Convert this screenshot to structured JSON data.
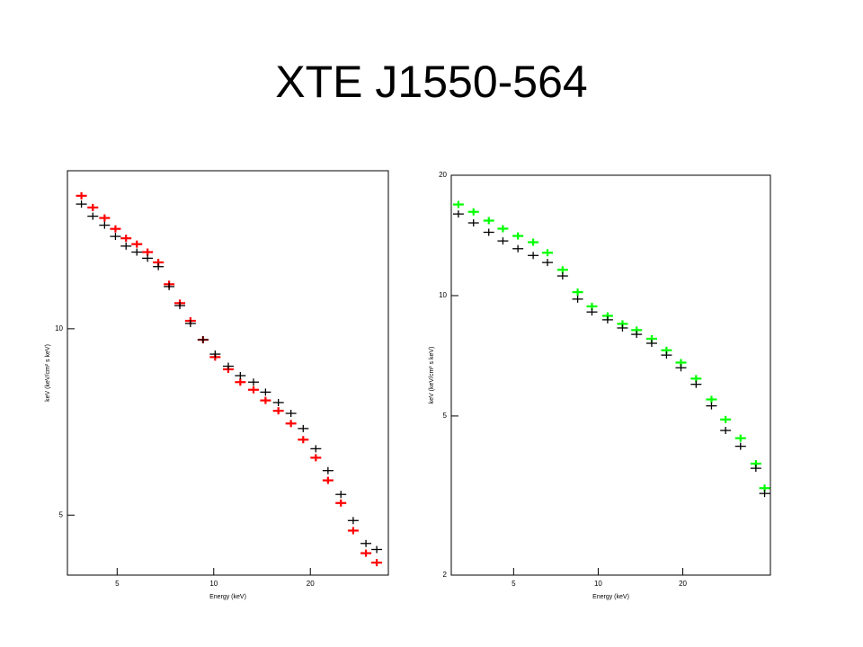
{
  "title": "XTE J1550-564",
  "chart_data": [
    {
      "type": "scatter",
      "xlabel": "Energy (keV)",
      "ylabel": "keV (keV/cm² s keV)",
      "log_x": true,
      "log_y": true,
      "xlim": [
        3.5,
        35
      ],
      "ylim": [
        4,
        18
      ],
      "xticks": [
        5,
        10,
        20
      ],
      "yticks": [
        5,
        10
      ],
      "series": [
        {
          "name": "red",
          "color": "#ff0000",
          "x": [
            3.87,
            4.2,
            4.57,
            4.94,
            5.33,
            5.76,
            6.22,
            6.72,
            7.26,
            7.84,
            8.46,
            9.26,
            10.1,
            11.1,
            12.1,
            13.3,
            14.5,
            15.9,
            17.4,
            19.0,
            20.8,
            22.7,
            24.9,
            27.2,
            29.8,
            32.2
          ],
          "values": [
            16.4,
            15.7,
            15.1,
            14.5,
            14.0,
            13.7,
            13.3,
            12.8,
            11.8,
            11.0,
            10.3,
            9.6,
            9.0,
            8.6,
            8.2,
            7.97,
            7.66,
            7.37,
            7.03,
            6.62,
            6.19,
            5.69,
            5.23,
            4.72,
            4.34,
            4.19
          ]
        },
        {
          "name": "black",
          "color": "#000000",
          "x": [
            3.87,
            4.2,
            4.57,
            4.94,
            5.33,
            5.76,
            6.22,
            6.72,
            7.26,
            7.84,
            8.46,
            9.26,
            10.1,
            11.1,
            12.1,
            13.3,
            14.5,
            15.9,
            17.4,
            19.0,
            20.8,
            22.7,
            24.9,
            27.2,
            29.8,
            32.2
          ],
          "values": [
            15.9,
            15.2,
            14.7,
            14.1,
            13.6,
            13.3,
            13.0,
            12.6,
            11.7,
            10.9,
            10.2,
            9.6,
            9.1,
            8.7,
            8.4,
            8.2,
            7.9,
            7.6,
            7.3,
            6.9,
            6.4,
            5.9,
            5.4,
            4.9,
            4.5,
            4.4
          ]
        }
      ]
    },
    {
      "type": "scatter",
      "xlabel": "Energy (keV)",
      "ylabel": "keV (keV/cm² s keV)",
      "log_x": true,
      "log_y": true,
      "xlim": [
        3.0,
        41
      ],
      "ylim": [
        2,
        20
      ],
      "xticks": [
        5,
        10,
        20
      ],
      "yticks": [
        2,
        5,
        10,
        20
      ],
      "series": [
        {
          "name": "green",
          "color": "#00ff00",
          "x": [
            3.18,
            3.6,
            4.08,
            4.58,
            5.18,
            5.87,
            6.6,
            7.47,
            8.45,
            9.5,
            10.8,
            12.2,
            13.7,
            15.5,
            17.5,
            19.7,
            22.3,
            25.3,
            28.4,
            32.1,
            36.4,
            39.1
          ],
          "values": [
            16.9,
            16.2,
            15.4,
            14.7,
            14.1,
            13.6,
            12.8,
            11.6,
            10.2,
            9.4,
            8.9,
            8.5,
            8.2,
            7.8,
            7.3,
            6.8,
            6.2,
            5.5,
            4.9,
            4.4,
            3.8,
            3.3
          ]
        },
        {
          "name": "black",
          "color": "#000000",
          "x": [
            3.18,
            3.6,
            4.08,
            4.58,
            5.18,
            5.87,
            6.6,
            7.47,
            8.45,
            9.5,
            10.8,
            12.2,
            13.7,
            15.5,
            17.5,
            19.7,
            22.3,
            25.3,
            28.4,
            32.1,
            36.4,
            39.1
          ],
          "values": [
            16.0,
            15.2,
            14.4,
            13.7,
            13.1,
            12.6,
            12.1,
            11.2,
            9.8,
            9.1,
            8.7,
            8.3,
            8.0,
            7.6,
            7.1,
            6.6,
            6.0,
            5.3,
            4.6,
            4.2,
            3.7,
            3.2
          ]
        }
      ]
    }
  ]
}
